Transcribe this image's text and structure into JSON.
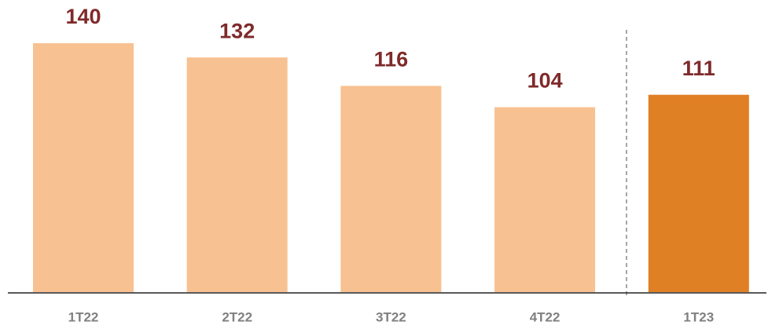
{
  "chart_data": {
    "type": "bar",
    "categories": [
      "1T22",
      "2T22",
      "3T22",
      "4T22",
      "1T23"
    ],
    "values": [
      140,
      132,
      116,
      104,
      111
    ],
    "colors": [
      "#f8c191",
      "#f8c191",
      "#f8c191",
      "#f8c191",
      "#e08024"
    ]
  }
}
